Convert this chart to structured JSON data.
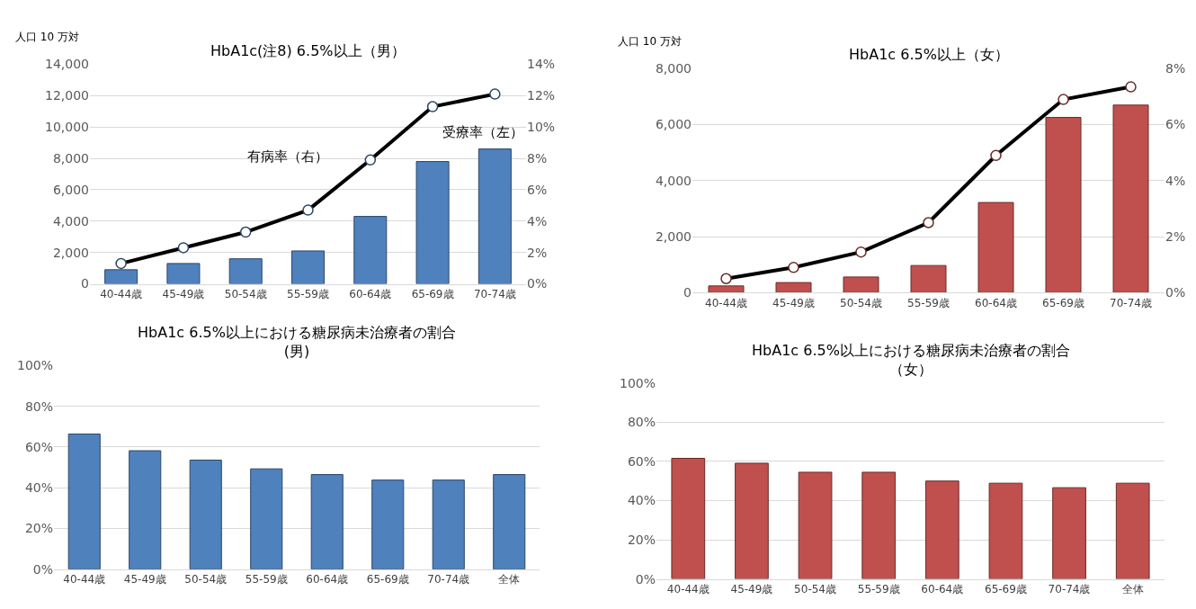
{
  "chart_data": [
    {
      "type": "bar",
      "title": "HbA1c(注8) 6.5%以上（男）",
      "ylabel": "人口 10 万対",
      "categories": [
        "40-44歳",
        "45-49歳",
        "50-54歳",
        "55-59歳",
        "60-64歳",
        "65-69歳",
        "70-74歳"
      ],
      "series": [
        {
          "type": "bar",
          "color": "#4f81bd",
          "values": [
            900,
            1300,
            1600,
            2100,
            4300,
            7800,
            8600
          ]
        },
        {
          "type": "line",
          "axis": "y2",
          "color": "#000000",
          "values": [
            1.3,
            2.3,
            3.3,
            4.7,
            7.9,
            11.3,
            12.1
          ]
        }
      ],
      "ylim": [
        0,
        14000
      ],
      "yticks": [
        {
          "value": 0,
          "label": "0"
        },
        {
          "value": 2000,
          "label": "2,000"
        },
        {
          "value": 4000,
          "label": "4,000"
        },
        {
          "value": 6000,
          "label": "6,000"
        },
        {
          "value": 8000,
          "label": "8,000"
        },
        {
          "value": 10000,
          "label": "10,000"
        },
        {
          "value": 12000,
          "label": "12,000"
        },
        {
          "value": 14000,
          "label": "14,000"
        }
      ],
      "y2lim": [
        0,
        14
      ],
      "y2ticks": [
        {
          "value": 0,
          "label": "0%"
        },
        {
          "value": 2,
          "label": "2%"
        },
        {
          "value": 4,
          "label": "4%"
        },
        {
          "value": 6,
          "label": "6%"
        },
        {
          "value": 8,
          "label": "8%"
        },
        {
          "value": 10,
          "label": "10%"
        },
        {
          "value": 12,
          "label": "12%"
        },
        {
          "value": 14,
          "label": "14%"
        }
      ],
      "annotations": [
        "有病率（右）",
        "受療率（左）"
      ],
      "grid": "y",
      "marker": "circle",
      "line_style": "solid"
    },
    {
      "type": "bar",
      "title": "HbA1c 6.5%以上（女）",
      "ylabel": "人口 10 万対",
      "categories": [
        "40-44歳",
        "45-49歳",
        "50-54歳",
        "55-59歳",
        "60-64歳",
        "65-69歳",
        "70-74歳"
      ],
      "series": [
        {
          "type": "bar",
          "color": "#c0504d",
          "values": [
            240,
            360,
            560,
            970,
            3220,
            6260,
            6700
          ]
        },
        {
          "type": "line",
          "axis": "y2",
          "color": "#000000",
          "values": [
            0.5,
            0.9,
            1.45,
            2.5,
            4.9,
            6.9,
            7.35
          ]
        }
      ],
      "ylim": [
        0,
        8000
      ],
      "yticks": [
        {
          "value": 0,
          "label": "0"
        },
        {
          "value": 2000,
          "label": "2,000"
        },
        {
          "value": 4000,
          "label": "4,000"
        },
        {
          "value": 6000,
          "label": "6,000"
        },
        {
          "value": 8000,
          "label": "8,000"
        }
      ],
      "y2lim": [
        0,
        8
      ],
      "y2ticks": [
        {
          "value": 0,
          "label": "0%"
        },
        {
          "value": 2,
          "label": "2%"
        },
        {
          "value": 4,
          "label": "4%"
        },
        {
          "value": 6,
          "label": "6%"
        },
        {
          "value": 8,
          "label": "8%"
        }
      ],
      "grid": "y",
      "marker": "circle",
      "line_style": "solid"
    },
    {
      "type": "bar",
      "title": "HbA1c 6.5%以上における糖尿病未治療者の割合",
      "subtitle": "(男)",
      "categories": [
        "40-44歳",
        "45-49歳",
        "50-54歳",
        "55-59歳",
        "60-64歳",
        "65-69歳",
        "70-74歳",
        "全体"
      ],
      "series": [
        {
          "color": "#4f81bd",
          "values": [
            66.4,
            58.2,
            53.6,
            49.3,
            46.5,
            43.8,
            43.8,
            46.5
          ]
        }
      ],
      "ylim": [
        0,
        100
      ],
      "yticks": [
        {
          "value": 0,
          "label": "0%"
        },
        {
          "value": 20,
          "label": "20%"
        },
        {
          "value": 40,
          "label": "40%"
        },
        {
          "value": 60,
          "label": "60%"
        },
        {
          "value": 80,
          "label": "80%"
        },
        {
          "value": 100,
          "label": "100%"
        }
      ],
      "grid": "y"
    },
    {
      "type": "bar",
      "title": "HbA1c 6.5%以上における糖尿病未治療者の割合",
      "subtitle": "（女）",
      "categories": [
        "40-44歳",
        "45-49歳",
        "50-54歳",
        "55-59歳",
        "60-64歳",
        "65-69歳",
        "70-74歳",
        "全体"
      ],
      "series": [
        {
          "color": "#c0504d",
          "values": [
            61.6,
            59.1,
            54.5,
            54.5,
            50.0,
            48.9,
            46.6,
            48.9
          ]
        }
      ],
      "ylim": [
        0,
        100
      ],
      "yticks": [
        {
          "value": 0,
          "label": "0%"
        },
        {
          "value": 20,
          "label": "20%"
        },
        {
          "value": 40,
          "label": "40%"
        },
        {
          "value": 60,
          "label": "60%"
        },
        {
          "value": 80,
          "label": "80%"
        },
        {
          "value": 100,
          "label": "100%"
        }
      ],
      "grid": "y"
    }
  ]
}
